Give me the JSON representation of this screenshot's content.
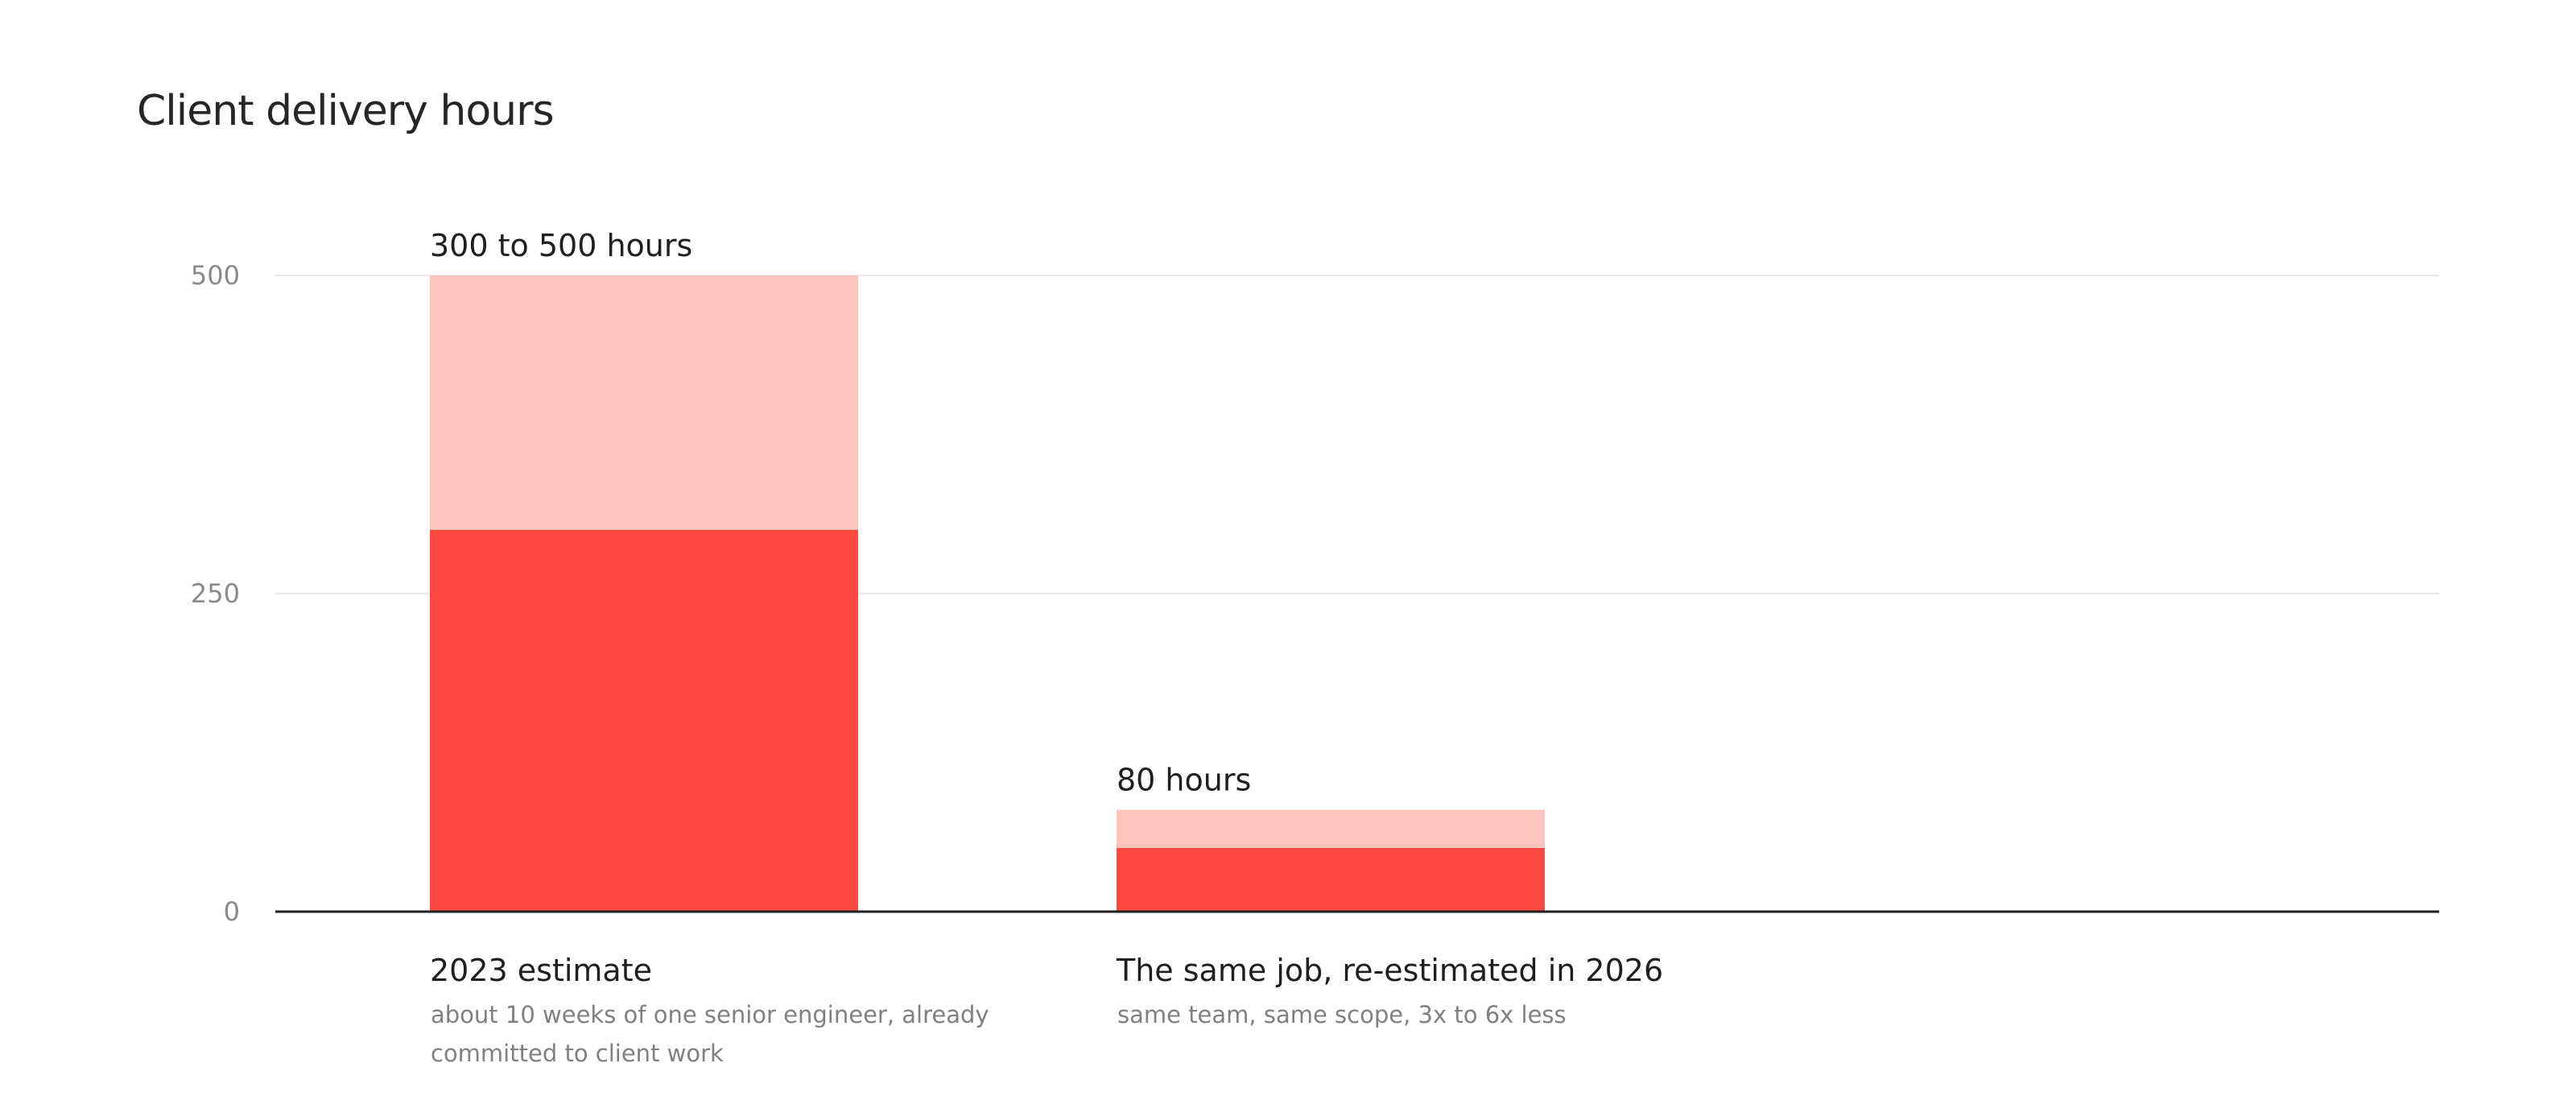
{
  "chart_data": {
    "type": "bar",
    "title": "Client delivery hours",
    "xlabel": "",
    "ylabel": "",
    "ylim": [
      0,
      500
    ],
    "yticks": [
      "0",
      "250",
      "500"
    ],
    "grid": true,
    "categories": [
      {
        "label": "2023 estimate",
        "sublabel_lines": [
          "about 10 weeks of one senior engineer, already",
          "committed to client work"
        ],
        "low": 300,
        "high": 500,
        "data_label": "300 to 500 hours"
      },
      {
        "label": "The same job, re-estimated in 2026",
        "sublabel_lines": [
          "same team, same scope, 3x to 6x less"
        ],
        "low": 50,
        "high": 80,
        "data_label": "80 hours"
      }
    ],
    "colors": {
      "range_low": "#ff4a42",
      "range_high": "#ffc3c0",
      "gridline": "#e8e8e8",
      "baseline": "#1f1f1f"
    }
  }
}
